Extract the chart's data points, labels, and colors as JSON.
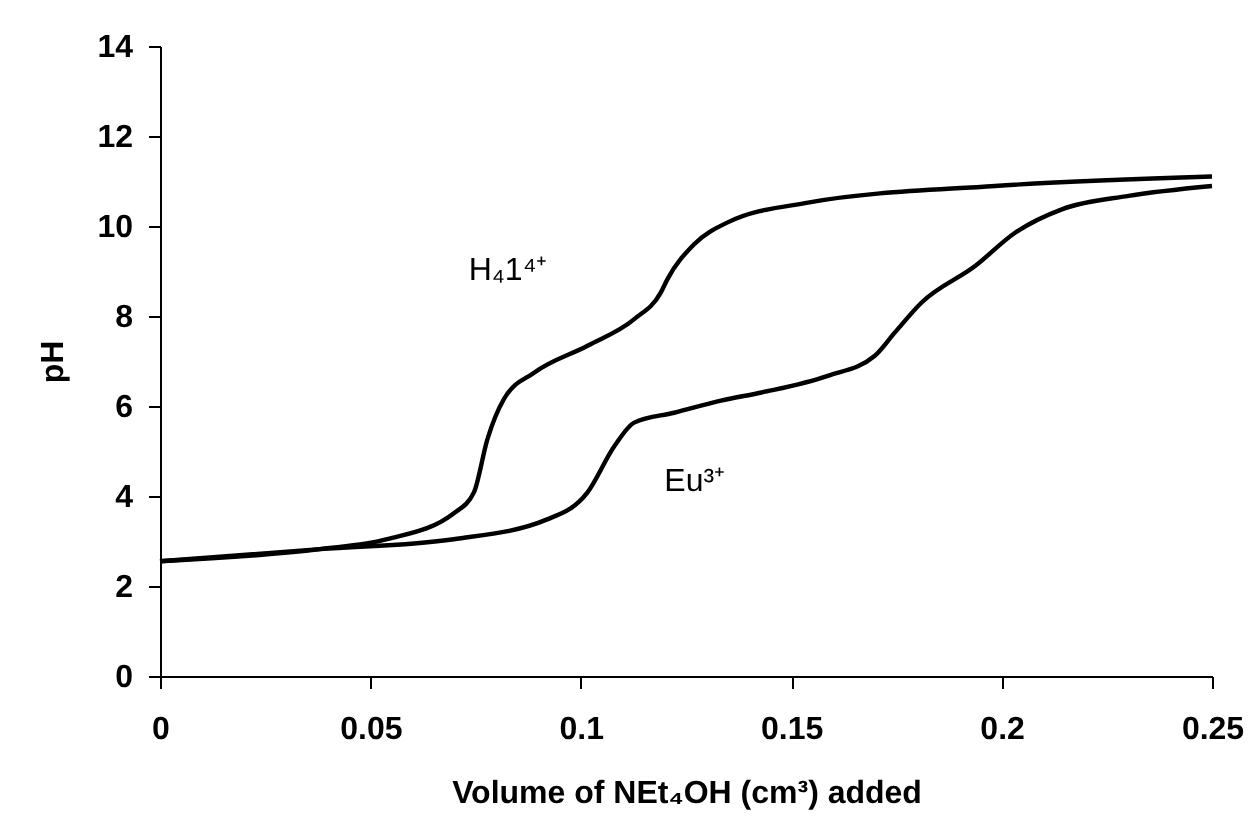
{
  "chart_data": {
    "type": "line",
    "xlabel": "Volume of NEt₄OH (cm³) added",
    "ylabel": "pH",
    "xlim": [
      0,
      0.25
    ],
    "ylim": [
      0,
      14
    ],
    "xticks": [
      0,
      0.05,
      0.1,
      0.15,
      0.2,
      0.25
    ],
    "yticks": [
      0,
      2,
      4,
      6,
      8,
      10,
      12,
      14
    ],
    "grid": false,
    "legend": false,
    "marker": "none",
    "line_style": "solid",
    "series": [
      {
        "name": "H₄1⁴⁺",
        "color": "#000000",
        "x": [
          0,
          0.038,
          0.054,
          0.07,
          0.0746,
          0.0778,
          0.0817,
          0.0889,
          0.1016,
          0.1127,
          0.119,
          0.1206,
          0.127,
          0.1349,
          0.154,
          0.1984,
          0.25
        ],
        "values": [
          2.55,
          2.82,
          3.04,
          3.63,
          4.08,
          5.26,
          6.15,
          6.74,
          7.34,
          7.93,
          8.52,
          8.82,
          9.6,
          10.08,
          10.52,
          10.89,
          11.1
        ]
      },
      {
        "name": "Eu³⁺",
        "color": "#000000",
        "x": [
          0,
          0.038,
          0.0698,
          0.092,
          0.1016,
          0.108,
          0.1127,
          0.1222,
          0.1333,
          0.1429,
          0.1587,
          0.1698,
          0.1746,
          0.181,
          0.1937,
          0.2032,
          0.2143,
          0.2302,
          0.25
        ],
        "values": [
          2.55,
          2.82,
          3.04,
          3.48,
          4.08,
          5.11,
          5.63,
          5.85,
          6.12,
          6.3,
          6.67,
          7.11,
          7.63,
          8.3,
          9.11,
          9.85,
          10.37,
          10.67,
          10.89
        ]
      }
    ]
  }
}
